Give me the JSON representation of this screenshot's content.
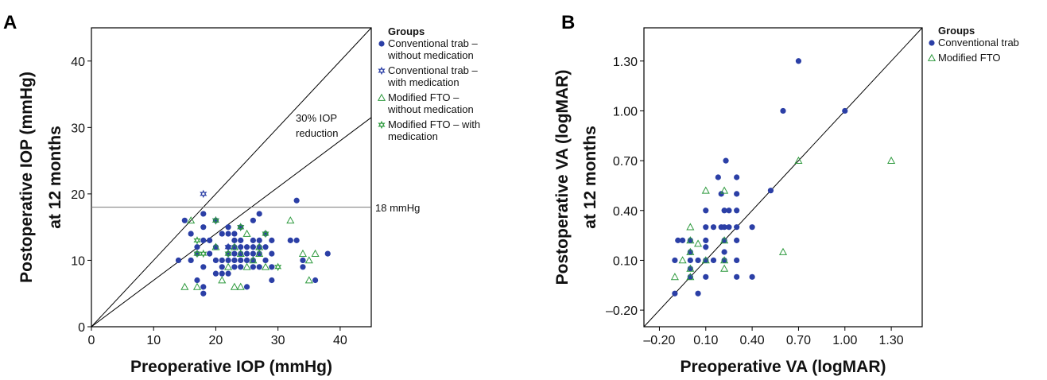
{
  "colors": {
    "conventional": "#2b3fa6",
    "modified": "#2e9a3e",
    "line": "#000000",
    "refline": "#777777"
  },
  "chart_data": [
    {
      "panel": "A",
      "type": "scatter",
      "xlabel": "Preoperative IOP (mmHg)",
      "ylabel_line1": "Postoperative IOP (mmHg)",
      "ylabel_line2": "at 12 months",
      "xlim": [
        0,
        45
      ],
      "ylim": [
        0,
        45
      ],
      "xticks": [
        "0",
        "10",
        "20",
        "30",
        "40"
      ],
      "yticks": [
        "0",
        "10",
        "20",
        "30",
        "40"
      ],
      "legend_title": "Groups",
      "legend_position": "right",
      "legend": [
        {
          "lines": [
            "Conventional trab –",
            "without medication"
          ],
          "marker": "dot",
          "color": "#2b3fa6"
        },
        {
          "lines": [
            "Conventional trab –",
            "with medication"
          ],
          "marker": "star",
          "color": "#2b3fa6"
        },
        {
          "lines": [
            "Modified FTO –",
            "without medication"
          ],
          "marker": "triangle",
          "color": "#2e9a3e"
        },
        {
          "lines": [
            "Modified FTO – with",
            "medication"
          ],
          "marker": "star",
          "color": "#2e9a3e"
        }
      ],
      "annotations": {
        "reduction_line1": "30% IOP",
        "reduction_line2": "reduction",
        "threshold": "18 mmHg"
      },
      "threshold_y": 18,
      "reduction_slope": 0.7,
      "series": [
        {
          "group": "Conventional trab – without medication",
          "marker": "dot",
          "color": "#2b3fa6",
          "points": [
            [
              14,
              10
            ],
            [
              15,
              16
            ],
            [
              16,
              14
            ],
            [
              16,
              10
            ],
            [
              17,
              12
            ],
            [
              17,
              11
            ],
            [
              17,
              7
            ],
            [
              18,
              17
            ],
            [
              18,
              15
            ],
            [
              18,
              13
            ],
            [
              18,
              9
            ],
            [
              18,
              6
            ],
            [
              18,
              5
            ],
            [
              19,
              13
            ],
            [
              19,
              11
            ],
            [
              20,
              12
            ],
            [
              20,
              10
            ],
            [
              20,
              8
            ],
            [
              20,
              16
            ],
            [
              21,
              14
            ],
            [
              21,
              10
            ],
            [
              21,
              9
            ],
            [
              21,
              8
            ],
            [
              22,
              15
            ],
            [
              22,
              14
            ],
            [
              22,
              12
            ],
            [
              22,
              11
            ],
            [
              22,
              10
            ],
            [
              22,
              8
            ],
            [
              23,
              14
            ],
            [
              23,
              13
            ],
            [
              23,
              12
            ],
            [
              23,
              11
            ],
            [
              23,
              10
            ],
            [
              23,
              9
            ],
            [
              24,
              15
            ],
            [
              24,
              13
            ],
            [
              24,
              12
            ],
            [
              24,
              11
            ],
            [
              24,
              10
            ],
            [
              24,
              9
            ],
            [
              25,
              12
            ],
            [
              25,
              11
            ],
            [
              25,
              10
            ],
            [
              25,
              6
            ],
            [
              26,
              16
            ],
            [
              26,
              13
            ],
            [
              26,
              12
            ],
            [
              26,
              11
            ],
            [
              26,
              10
            ],
            [
              26,
              9
            ],
            [
              27,
              17
            ],
            [
              27,
              13
            ],
            [
              27,
              12
            ],
            [
              27,
              11
            ],
            [
              27,
              9
            ],
            [
              28,
              14
            ],
            [
              28,
              12
            ],
            [
              28,
              10
            ],
            [
              29,
              13
            ],
            [
              29,
              11
            ],
            [
              29,
              9
            ],
            [
              29,
              7
            ],
            [
              32,
              13
            ],
            [
              33,
              19
            ],
            [
              33,
              13
            ],
            [
              34,
              10
            ],
            [
              34,
              9
            ],
            [
              36,
              7
            ],
            [
              38,
              11
            ]
          ]
        },
        {
          "group": "Conventional trab – with medication",
          "marker": "star",
          "color": "#2b3fa6",
          "points": [
            [
              18,
              20
            ],
            [
              20,
              16
            ],
            [
              22,
              12
            ],
            [
              24,
              15
            ]
          ]
        },
        {
          "group": "Modified FTO – without medication",
          "marker": "triangle",
          "color": "#2e9a3e",
          "points": [
            [
              15,
              6
            ],
            [
              16,
              16
            ],
            [
              17,
              6
            ],
            [
              20,
              12
            ],
            [
              21,
              7
            ],
            [
              22,
              9
            ],
            [
              23,
              6
            ],
            [
              23,
              12
            ],
            [
              24,
              6
            ],
            [
              24,
              11
            ],
            [
              25,
              14
            ],
            [
              25,
              9
            ],
            [
              26,
              10
            ],
            [
              27,
              12
            ],
            [
              27,
              11
            ],
            [
              28,
              9
            ],
            [
              32,
              16
            ],
            [
              34,
              11
            ],
            [
              35,
              10
            ],
            [
              35,
              7
            ],
            [
              36,
              11
            ]
          ]
        },
        {
          "group": "Modified FTO – with medication",
          "marker": "star",
          "color": "#2e9a3e",
          "points": [
            [
              17,
              13
            ],
            [
              17,
              11
            ],
            [
              18,
              11
            ],
            [
              20,
              16
            ],
            [
              22,
              11
            ],
            [
              24,
              15
            ],
            [
              28,
              14
            ],
            [
              30,
              9
            ]
          ]
        }
      ]
    },
    {
      "panel": "B",
      "type": "scatter",
      "xlabel": "Preoperative VA (logMAR)",
      "ylabel_line1": "Postoperative VA (logMAR)",
      "ylabel_line2": "at 12 months",
      "xlim": [
        -0.3,
        1.5
      ],
      "ylim": [
        -0.3,
        1.5
      ],
      "xticks": [
        "–0.20",
        "0.10",
        "0.40",
        "0.70",
        "1.00",
        "1.30"
      ],
      "xtick_values": [
        -0.2,
        0.1,
        0.4,
        0.7,
        1.0,
        1.3
      ],
      "yticks": [
        "–0.20",
        "0.10",
        "0.40",
        "0.70",
        "1.00",
        "1.30"
      ],
      "ytick_values": [
        -0.2,
        0.1,
        0.4,
        0.7,
        1.0,
        1.3
      ],
      "legend_title": "Groups",
      "legend_position": "right",
      "legend": [
        {
          "lines": [
            "Conventional trab"
          ],
          "marker": "dot",
          "color": "#2b3fa6"
        },
        {
          "lines": [
            "Modified FTO"
          ],
          "marker": "triangle",
          "color": "#2e9a3e"
        }
      ],
      "series": [
        {
          "group": "Conventional trab",
          "marker": "dot",
          "color": "#2b3fa6",
          "points": [
            [
              -0.1,
              -0.1
            ],
            [
              -0.1,
              0.1
            ],
            [
              -0.08,
              0.22
            ],
            [
              -0.05,
              0.22
            ],
            [
              0,
              0.22
            ],
            [
              0,
              0.15
            ],
            [
              0,
              0.1
            ],
            [
              0,
              0.05
            ],
            [
              0,
              0
            ],
            [
              0.05,
              0.1
            ],
            [
              0.05,
              -0.1
            ],
            [
              0.1,
              0.4
            ],
            [
              0.1,
              0.3
            ],
            [
              0.1,
              0.22
            ],
            [
              0.1,
              0.18
            ],
            [
              0.1,
              0.1
            ],
            [
              0.1,
              0
            ],
            [
              0.15,
              0.3
            ],
            [
              0.15,
              0.1
            ],
            [
              0.18,
              0.6
            ],
            [
              0.2,
              0.5
            ],
            [
              0.2,
              0.3
            ],
            [
              0.22,
              0.4
            ],
            [
              0.22,
              0.3
            ],
            [
              0.22,
              0.22
            ],
            [
              0.22,
              0.15
            ],
            [
              0.22,
              0.1
            ],
            [
              0.23,
              0.7
            ],
            [
              0.25,
              0.4
            ],
            [
              0.25,
              0.3
            ],
            [
              0.3,
              0.6
            ],
            [
              0.3,
              0.5
            ],
            [
              0.3,
              0.4
            ],
            [
              0.3,
              0.3
            ],
            [
              0.3,
              0.22
            ],
            [
              0.3,
              0.1
            ],
            [
              0.3,
              0
            ],
            [
              0.4,
              0.3
            ],
            [
              0.4,
              0
            ],
            [
              0.52,
              0.52
            ],
            [
              0.6,
              1.0
            ],
            [
              0.7,
              1.3
            ],
            [
              1.0,
              1.0
            ]
          ]
        },
        {
          "group": "Modified FTO",
          "marker": "triangle",
          "color": "#2e9a3e",
          "points": [
            [
              -0.1,
              0
            ],
            [
              -0.05,
              0.1
            ],
            [
              0,
              0.3
            ],
            [
              0,
              0.22
            ],
            [
              0,
              0.15
            ],
            [
              0,
              0.05
            ],
            [
              0,
              0
            ],
            [
              0.05,
              0.2
            ],
            [
              0.1,
              0.52
            ],
            [
              0.1,
              0.1
            ],
            [
              0.22,
              0.52
            ],
            [
              0.22,
              0.22
            ],
            [
              0.22,
              0.1
            ],
            [
              0.22,
              0.05
            ],
            [
              0.6,
              0.15
            ],
            [
              0.7,
              0.7
            ],
            [
              1.3,
              0.7
            ]
          ]
        }
      ]
    }
  ]
}
